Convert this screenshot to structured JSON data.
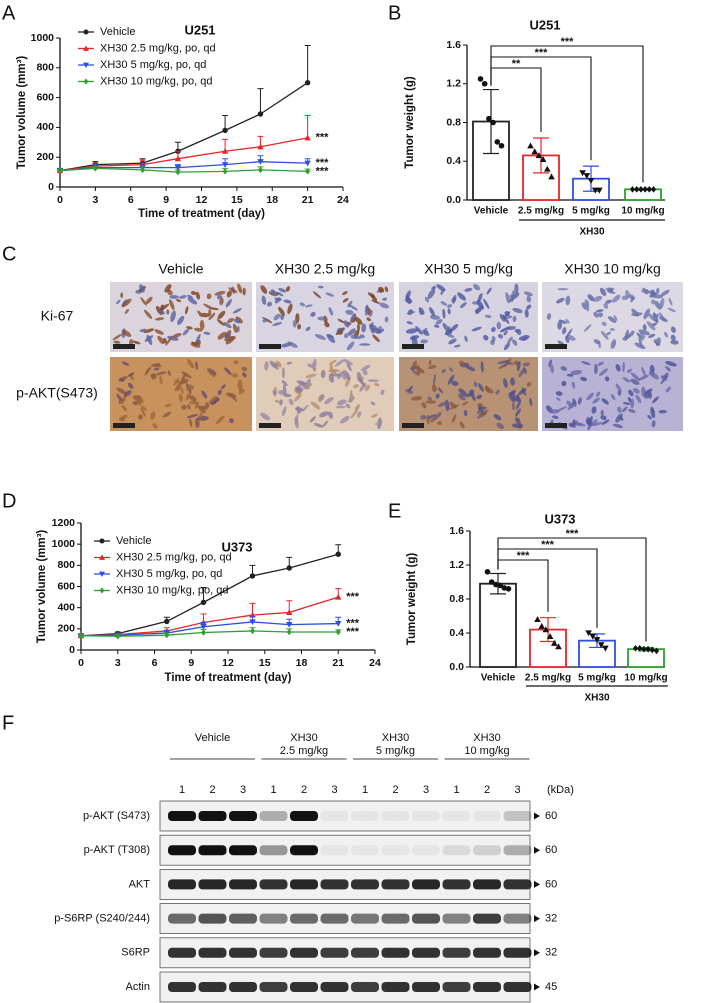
{
  "chart_data": [
    {
      "panel": "A",
      "type": "line",
      "title": "U251",
      "x": [
        0,
        3,
        7,
        10,
        14,
        17,
        21
      ],
      "xlim": [
        0,
        24
      ],
      "xticks": [
        0,
        3,
        6,
        9,
        12,
        15,
        18,
        21,
        24
      ],
      "ylim": [
        0,
        1000
      ],
      "yticks": [
        0,
        200,
        400,
        600,
        800,
        1000
      ],
      "xlabel": "Time of treatment (day)",
      "ylabel": "Tumor volume (mm³)",
      "legend": "upper left",
      "series": [
        {
          "name": "Vehicle",
          "color": "#222222",
          "marker": "circle",
          "values": [
            110,
            150,
            160,
            240,
            380,
            490,
            700
          ],
          "errors": [
            15,
            20,
            30,
            60,
            100,
            170,
            250
          ]
        },
        {
          "name": "XH30 2.5 mg/kg, po, qd",
          "color": "#e8262a",
          "marker": "triangle-up",
          "values": [
            110,
            140,
            150,
            190,
            240,
            270,
            330
          ],
          "errors": [
            10,
            20,
            30,
            50,
            80,
            70,
            150
          ],
          "significance": "***"
        },
        {
          "name": "XH30 5 mg/kg, po, qd",
          "color": "#2f4fe0",
          "marker": "triangle-down",
          "values": [
            110,
            130,
            130,
            130,
            150,
            170,
            160
          ],
          "errors": [
            10,
            20,
            30,
            20,
            40,
            40,
            30
          ],
          "significance": "***"
        },
        {
          "name": "XH30 10 mg/kg, po, qd",
          "color": "#2ea02e",
          "marker": "diamond",
          "values": [
            110,
            125,
            115,
            100,
            105,
            115,
            105
          ],
          "errors": [
            10,
            15,
            20,
            15,
            20,
            20,
            15
          ],
          "significance": "***"
        }
      ]
    },
    {
      "panel": "B",
      "type": "bar",
      "title": "U251",
      "categories": [
        "Vehicle",
        "2.5 mg/kg",
        "5 mg/kg",
        "10 mg/kg"
      ],
      "group_label": "XH30",
      "colors": [
        "#222222",
        "#e8262a",
        "#2f4fe0",
        "#2ea02e"
      ],
      "markers": [
        "circle",
        "triangle-up",
        "triangle-down",
        "diamond"
      ],
      "values": [
        0.81,
        0.46,
        0.22,
        0.11
      ],
      "errors": [
        0.33,
        0.18,
        0.13,
        0.01
      ],
      "points": [
        [
          1.25,
          1.2,
          0.84,
          0.8,
          0.6,
          0.56
        ],
        [
          0.56,
          0.5,
          0.46,
          0.42,
          0.32,
          0.24
        ],
        [
          0.28,
          0.25,
          0.2,
          0.1,
          0.1
        ],
        [
          0.11,
          0.11,
          0.11,
          0.11,
          0.11,
          0.11
        ]
      ],
      "significance": [
        null,
        "**",
        "***",
        "***"
      ],
      "ylim": [
        0,
        1.6
      ],
      "yticks": [
        {
          "value": 0,
          "label": "0.0"
        },
        0.4,
        0.8,
        1.2,
        1.6
      ],
      "ylabel": "Tumor weight (g)"
    },
    {
      "panel": "D",
      "type": "line",
      "title": "U373",
      "x": [
        0,
        3,
        7,
        10,
        14,
        17,
        21
      ],
      "xlim": [
        0,
        24
      ],
      "xticks": [
        0,
        3,
        6,
        9,
        12,
        15,
        18,
        21,
        24
      ],
      "ylim": [
        0,
        1200
      ],
      "yticks": [
        0,
        200,
        400,
        600,
        800,
        1000,
        1200
      ],
      "xlabel": "Time of treatment (day)",
      "ylabel": "Tumor volume (mm³)",
      "legend": "upper left",
      "series": [
        {
          "name": "Vehicle",
          "color": "#222222",
          "marker": "circle",
          "values": [
            135,
            155,
            270,
            450,
            700,
            775,
            905
          ],
          "errors": [
            10,
            15,
            40,
            140,
            100,
            100,
            90
          ]
        },
        {
          "name": "XH30 2.5 mg/kg, po, qd",
          "color": "#e8262a",
          "marker": "triangle-up",
          "values": [
            135,
            145,
            180,
            260,
            330,
            355,
            500
          ],
          "errors": [
            10,
            15,
            30,
            80,
            110,
            110,
            80
          ],
          "significance": "***"
        },
        {
          "name": "XH30 5 mg/kg, po, qd",
          "color": "#2f4fe0",
          "marker": "triangle-down",
          "values": [
            135,
            140,
            160,
            220,
            265,
            240,
            250
          ],
          "errors": [
            10,
            15,
            25,
            40,
            50,
            50,
            60
          ],
          "significance": "***"
        },
        {
          "name": "XH30 10 mg/kg, po, qd",
          "color": "#2ea02e",
          "marker": "diamond",
          "values": [
            135,
            130,
            140,
            165,
            180,
            170,
            170
          ],
          "errors": [
            10,
            15,
            20,
            30,
            30,
            30,
            20
          ],
          "significance": "***"
        }
      ]
    },
    {
      "panel": "E",
      "type": "bar",
      "title": "U373",
      "categories": [
        "Vehicle",
        "2.5 mg/kg",
        "5 mg/kg",
        "10 mg/kg"
      ],
      "group_label": "XH30",
      "colors": [
        "#222222",
        "#e8262a",
        "#2f4fe0",
        "#2ea02e"
      ],
      "markers": [
        "circle",
        "triangle-up",
        "triangle-down",
        "diamond"
      ],
      "values": [
        0.98,
        0.44,
        0.31,
        0.21
      ],
      "errors": [
        0.12,
        0.14,
        0.08,
        0.02
      ],
      "points": [
        [
          1.12,
          1.0,
          0.97,
          0.96,
          0.93,
          0.92
        ],
        [
          0.56,
          0.48,
          0.44,
          0.36,
          0.28,
          0.24
        ],
        [
          0.4,
          0.36,
          0.32,
          0.26,
          0.22
        ],
        [
          0.22,
          0.22,
          0.21,
          0.21,
          0.2,
          0.19
        ]
      ],
      "significance": [
        null,
        "***",
        "***",
        "***"
      ],
      "ylim": [
        0,
        1.6
      ],
      "yticks": [
        {
          "value": 0,
          "label": "0.0"
        },
        0.4,
        0.8,
        1.2,
        1.6
      ],
      "ylabel": "Tumor weight (g)"
    }
  ],
  "ihc": {
    "panel": "C",
    "columns": [
      "Vehicle",
      "XH30 2.5 mg/kg",
      "XH30 5 mg/kg",
      "XH30  10 mg/kg"
    ],
    "rows": [
      "Ki-67",
      "p-AKT(S473)"
    ]
  },
  "western": {
    "panel": "F",
    "groups": [
      {
        "name": "Vehicle"
      },
      {
        "name": "XH30",
        "dose": "2.5 mg/kg"
      },
      {
        "name": "XH30",
        "dose": "5 mg/kg"
      },
      {
        "name": "XH30",
        "dose": "10 mg/kg"
      }
    ],
    "lane_labels": [
      "1",
      "2",
      "3"
    ],
    "unit": "(kDa)",
    "rows": [
      {
        "label": "p-AKT (S473)",
        "kda": 60
      },
      {
        "label": "p-AKT (T308)",
        "kda": 60
      },
      {
        "label": "AKT",
        "kda": 60
      },
      {
        "label": "p-S6RP (S240/244)",
        "kda": 32
      },
      {
        "label": "S6RP",
        "kda": 32
      },
      {
        "label": "Actin",
        "kda": 45
      }
    ]
  }
}
